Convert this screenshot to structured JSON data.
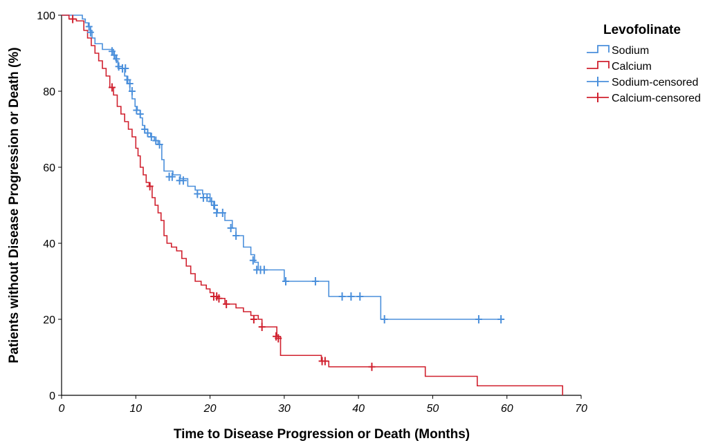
{
  "chart_data": {
    "type": "line",
    "subtype": "kaplan-meier",
    "title": "",
    "xlabel": "Time to Disease Progression or Death (Months)",
    "ylabel": "Patients without Disease Progression or Death (%)",
    "xlim": [
      0,
      70
    ],
    "ylim": [
      0,
      100
    ],
    "xticks": [
      0,
      10,
      20,
      30,
      40,
      50,
      60,
      70
    ],
    "yticks": [
      0,
      20,
      40,
      60,
      80,
      100
    ],
    "grid": false,
    "legend": {
      "title": "Levofolinate",
      "position": "top-right",
      "entries": [
        "Sodium",
        "Calcium",
        "Sodium-censored",
        "Calcium-censored"
      ]
    },
    "series": [
      {
        "name": "Sodium",
        "color": "#4a8fdb",
        "steps": [
          [
            0,
            100
          ],
          [
            2.8,
            99
          ],
          [
            3.2,
            98
          ],
          [
            3.6,
            97
          ],
          [
            3.9,
            96
          ],
          [
            4.1,
            94
          ],
          [
            4.5,
            92.5
          ],
          [
            5.5,
            91
          ],
          [
            7,
            89.5
          ],
          [
            7.3,
            88
          ],
          [
            7.6,
            86
          ],
          [
            8.5,
            84
          ],
          [
            8.8,
            82
          ],
          [
            9.2,
            80
          ],
          [
            9.5,
            78
          ],
          [
            9.9,
            76
          ],
          [
            10.2,
            75
          ],
          [
            10.6,
            73
          ],
          [
            10.9,
            71
          ],
          [
            11.2,
            70
          ],
          [
            11.6,
            69
          ],
          [
            12,
            68
          ],
          [
            12.5,
            67
          ],
          [
            13,
            66
          ],
          [
            13.5,
            62
          ],
          [
            13.8,
            59
          ],
          [
            15,
            58
          ],
          [
            16,
            57
          ],
          [
            17,
            55
          ],
          [
            18,
            54
          ],
          [
            19,
            53
          ],
          [
            20,
            51
          ],
          [
            20.5,
            49
          ],
          [
            21,
            48
          ],
          [
            22,
            46
          ],
          [
            23,
            44
          ],
          [
            23.5,
            42
          ],
          [
            24.5,
            39
          ],
          [
            25.5,
            37
          ],
          [
            26,
            35
          ],
          [
            26.5,
            33
          ],
          [
            30,
            30
          ],
          [
            36,
            26
          ],
          [
            43,
            20
          ],
          [
            59,
            20
          ]
        ],
        "censored": [
          [
            3.7,
            97
          ],
          [
            3.9,
            95.5
          ],
          [
            6.8,
            90.5
          ],
          [
            7.1,
            89.5
          ],
          [
            7.4,
            88.5
          ],
          [
            7.7,
            86.5
          ],
          [
            8.2,
            86
          ],
          [
            8.6,
            86
          ],
          [
            8.9,
            83
          ],
          [
            9.2,
            82
          ],
          [
            9.5,
            80
          ],
          [
            10.1,
            75
          ],
          [
            10.6,
            74
          ],
          [
            11.2,
            70
          ],
          [
            11.6,
            69
          ],
          [
            12.1,
            68
          ],
          [
            12.7,
            67
          ],
          [
            13.2,
            66
          ],
          [
            14.5,
            57.5
          ],
          [
            14.9,
            57.5
          ],
          [
            15.9,
            56.5
          ],
          [
            16.4,
            56.5
          ],
          [
            18.3,
            53
          ],
          [
            19.1,
            52
          ],
          [
            19.6,
            52
          ],
          [
            20.2,
            51
          ],
          [
            20.6,
            50
          ],
          [
            20.9,
            48
          ],
          [
            21.7,
            48
          ],
          [
            22.8,
            44
          ],
          [
            23.5,
            42
          ],
          [
            25.8,
            35.5
          ],
          [
            26.3,
            33
          ],
          [
            26.8,
            33
          ],
          [
            27.3,
            33
          ],
          [
            30.2,
            30
          ],
          [
            34.2,
            30
          ],
          [
            37.8,
            26
          ],
          [
            39,
            26
          ],
          [
            40.2,
            26
          ],
          [
            43.5,
            20
          ],
          [
            56.2,
            20
          ],
          [
            59.2,
            20
          ]
        ]
      },
      {
        "name": "Calcium",
        "color": "#d0202e",
        "steps": [
          [
            0,
            100
          ],
          [
            1,
            99
          ],
          [
            2,
            98.5
          ],
          [
            3,
            96
          ],
          [
            3.5,
            94
          ],
          [
            4,
            92
          ],
          [
            4.5,
            90
          ],
          [
            5,
            88
          ],
          [
            5.5,
            86
          ],
          [
            6,
            84
          ],
          [
            6.5,
            81
          ],
          [
            7,
            79
          ],
          [
            7.5,
            76
          ],
          [
            8,
            74
          ],
          [
            8.5,
            72
          ],
          [
            9,
            70
          ],
          [
            9.5,
            68
          ],
          [
            10,
            65
          ],
          [
            10.3,
            63
          ],
          [
            10.6,
            60
          ],
          [
            11,
            58
          ],
          [
            11.4,
            56
          ],
          [
            11.8,
            55
          ],
          [
            12.2,
            52
          ],
          [
            12.6,
            50
          ],
          [
            13,
            48
          ],
          [
            13.4,
            46
          ],
          [
            13.8,
            42
          ],
          [
            14.2,
            40
          ],
          [
            14.8,
            39
          ],
          [
            15.5,
            38
          ],
          [
            16.2,
            36
          ],
          [
            16.8,
            34
          ],
          [
            17.4,
            32
          ],
          [
            18,
            30
          ],
          [
            18.8,
            29
          ],
          [
            19.5,
            28
          ],
          [
            20,
            27
          ],
          [
            20.5,
            26
          ],
          [
            21,
            25.5
          ],
          [
            22,
            24
          ],
          [
            23.5,
            23
          ],
          [
            24.5,
            22
          ],
          [
            25.5,
            21
          ],
          [
            26.5,
            20
          ],
          [
            27,
            18
          ],
          [
            29,
            15.5
          ],
          [
            29.5,
            10.5
          ],
          [
            35,
            9
          ],
          [
            36,
            7.5
          ],
          [
            42,
            7.5
          ],
          [
            49,
            5
          ],
          [
            56,
            2.5
          ],
          [
            67.5,
            2.5
          ],
          [
            67.5,
            0
          ]
        ],
        "censored": [
          [
            1.5,
            99
          ],
          [
            6.8,
            81
          ],
          [
            11.9,
            55
          ],
          [
            20.5,
            26
          ],
          [
            20.9,
            26
          ],
          [
            21.2,
            25.5
          ],
          [
            22.2,
            24
          ],
          [
            25.9,
            20
          ],
          [
            27,
            18
          ],
          [
            28.9,
            15.5
          ],
          [
            29.2,
            15
          ],
          [
            35.1,
            9
          ],
          [
            35.5,
            9
          ],
          [
            41.8,
            7.5
          ]
        ]
      }
    ]
  }
}
